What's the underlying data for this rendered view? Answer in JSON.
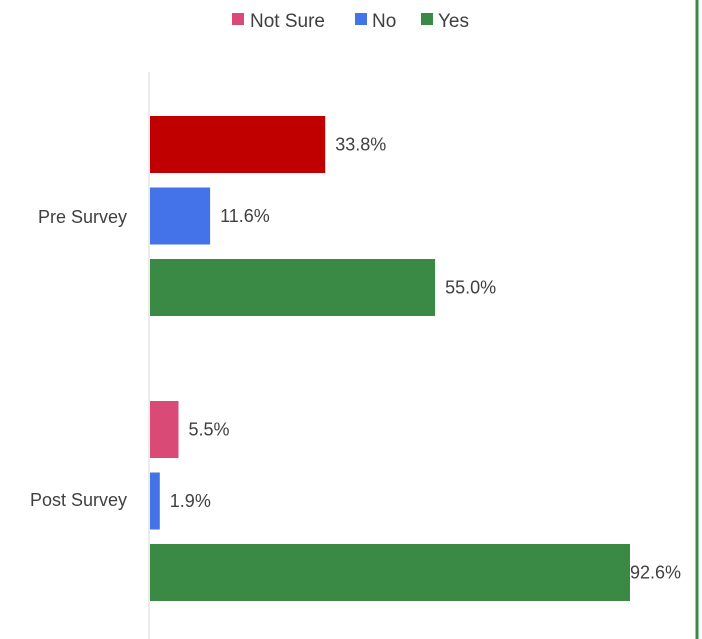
{
  "chart_data": {
    "type": "bar",
    "orientation": "horizontal",
    "categories": [
      "Pre Survey",
      "Post Survey"
    ],
    "series": [
      {
        "name": "Not Sure",
        "values": [
          33.8,
          5.5
        ],
        "labels": [
          "33.8%",
          "5.5%"
        ],
        "colors": [
          "#C00000",
          "#D94A76"
        ]
      },
      {
        "name": "No",
        "values": [
          11.6,
          1.9
        ],
        "labels": [
          "11.6%",
          "1.9%"
        ],
        "colors": [
          "#4472E8",
          "#4472E8"
        ]
      },
      {
        "name": "Yes",
        "values": [
          55.0,
          92.6
        ],
        "labels": [
          "55.0%",
          "92.6%"
        ],
        "colors": [
          "#3A8A45",
          "#3A8A45"
        ]
      }
    ],
    "legend": {
      "position": "top",
      "items": [
        {
          "name": "Not Sure",
          "color": "#D94A76"
        },
        {
          "name": "No",
          "color": "#4472E8"
        },
        {
          "name": "Yes",
          "color": "#3A8A45"
        }
      ]
    },
    "xlim": [
      0,
      100
    ],
    "grid": false,
    "title": "",
    "xlabel": "",
    "ylabel": ""
  }
}
